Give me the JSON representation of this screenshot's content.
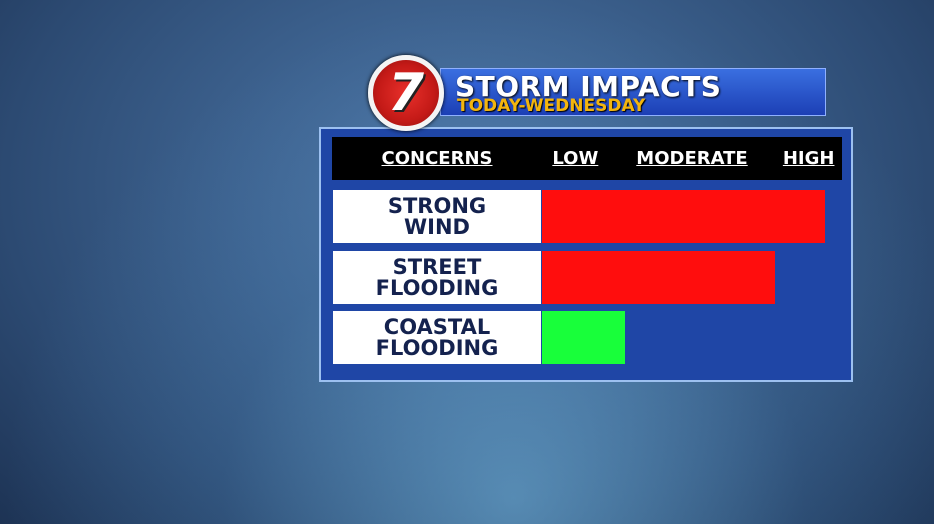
{
  "chart_data": {
    "type": "bar",
    "orientation": "horizontal",
    "logo": "7",
    "title": "STORM IMPACTS",
    "subtitle": "TODAY-WEDNESDAY",
    "category_header": "CONCERNS",
    "categories": [
      "STRONG WIND",
      "STREET FLOODING",
      "COASTAL FLOODING"
    ],
    "values": [
      8.5,
      7,
      2.5
    ],
    "colors": [
      "#ff0d0d",
      "#ff0d0d",
      "#18ff3a"
    ],
    "xlim": [
      0,
      9
    ],
    "xticks": [
      {
        "value": 1,
        "label": "LOW"
      },
      {
        "value": 4.5,
        "label": "MODERATE"
      },
      {
        "value": 8,
        "label": "HIGH"
      }
    ]
  }
}
